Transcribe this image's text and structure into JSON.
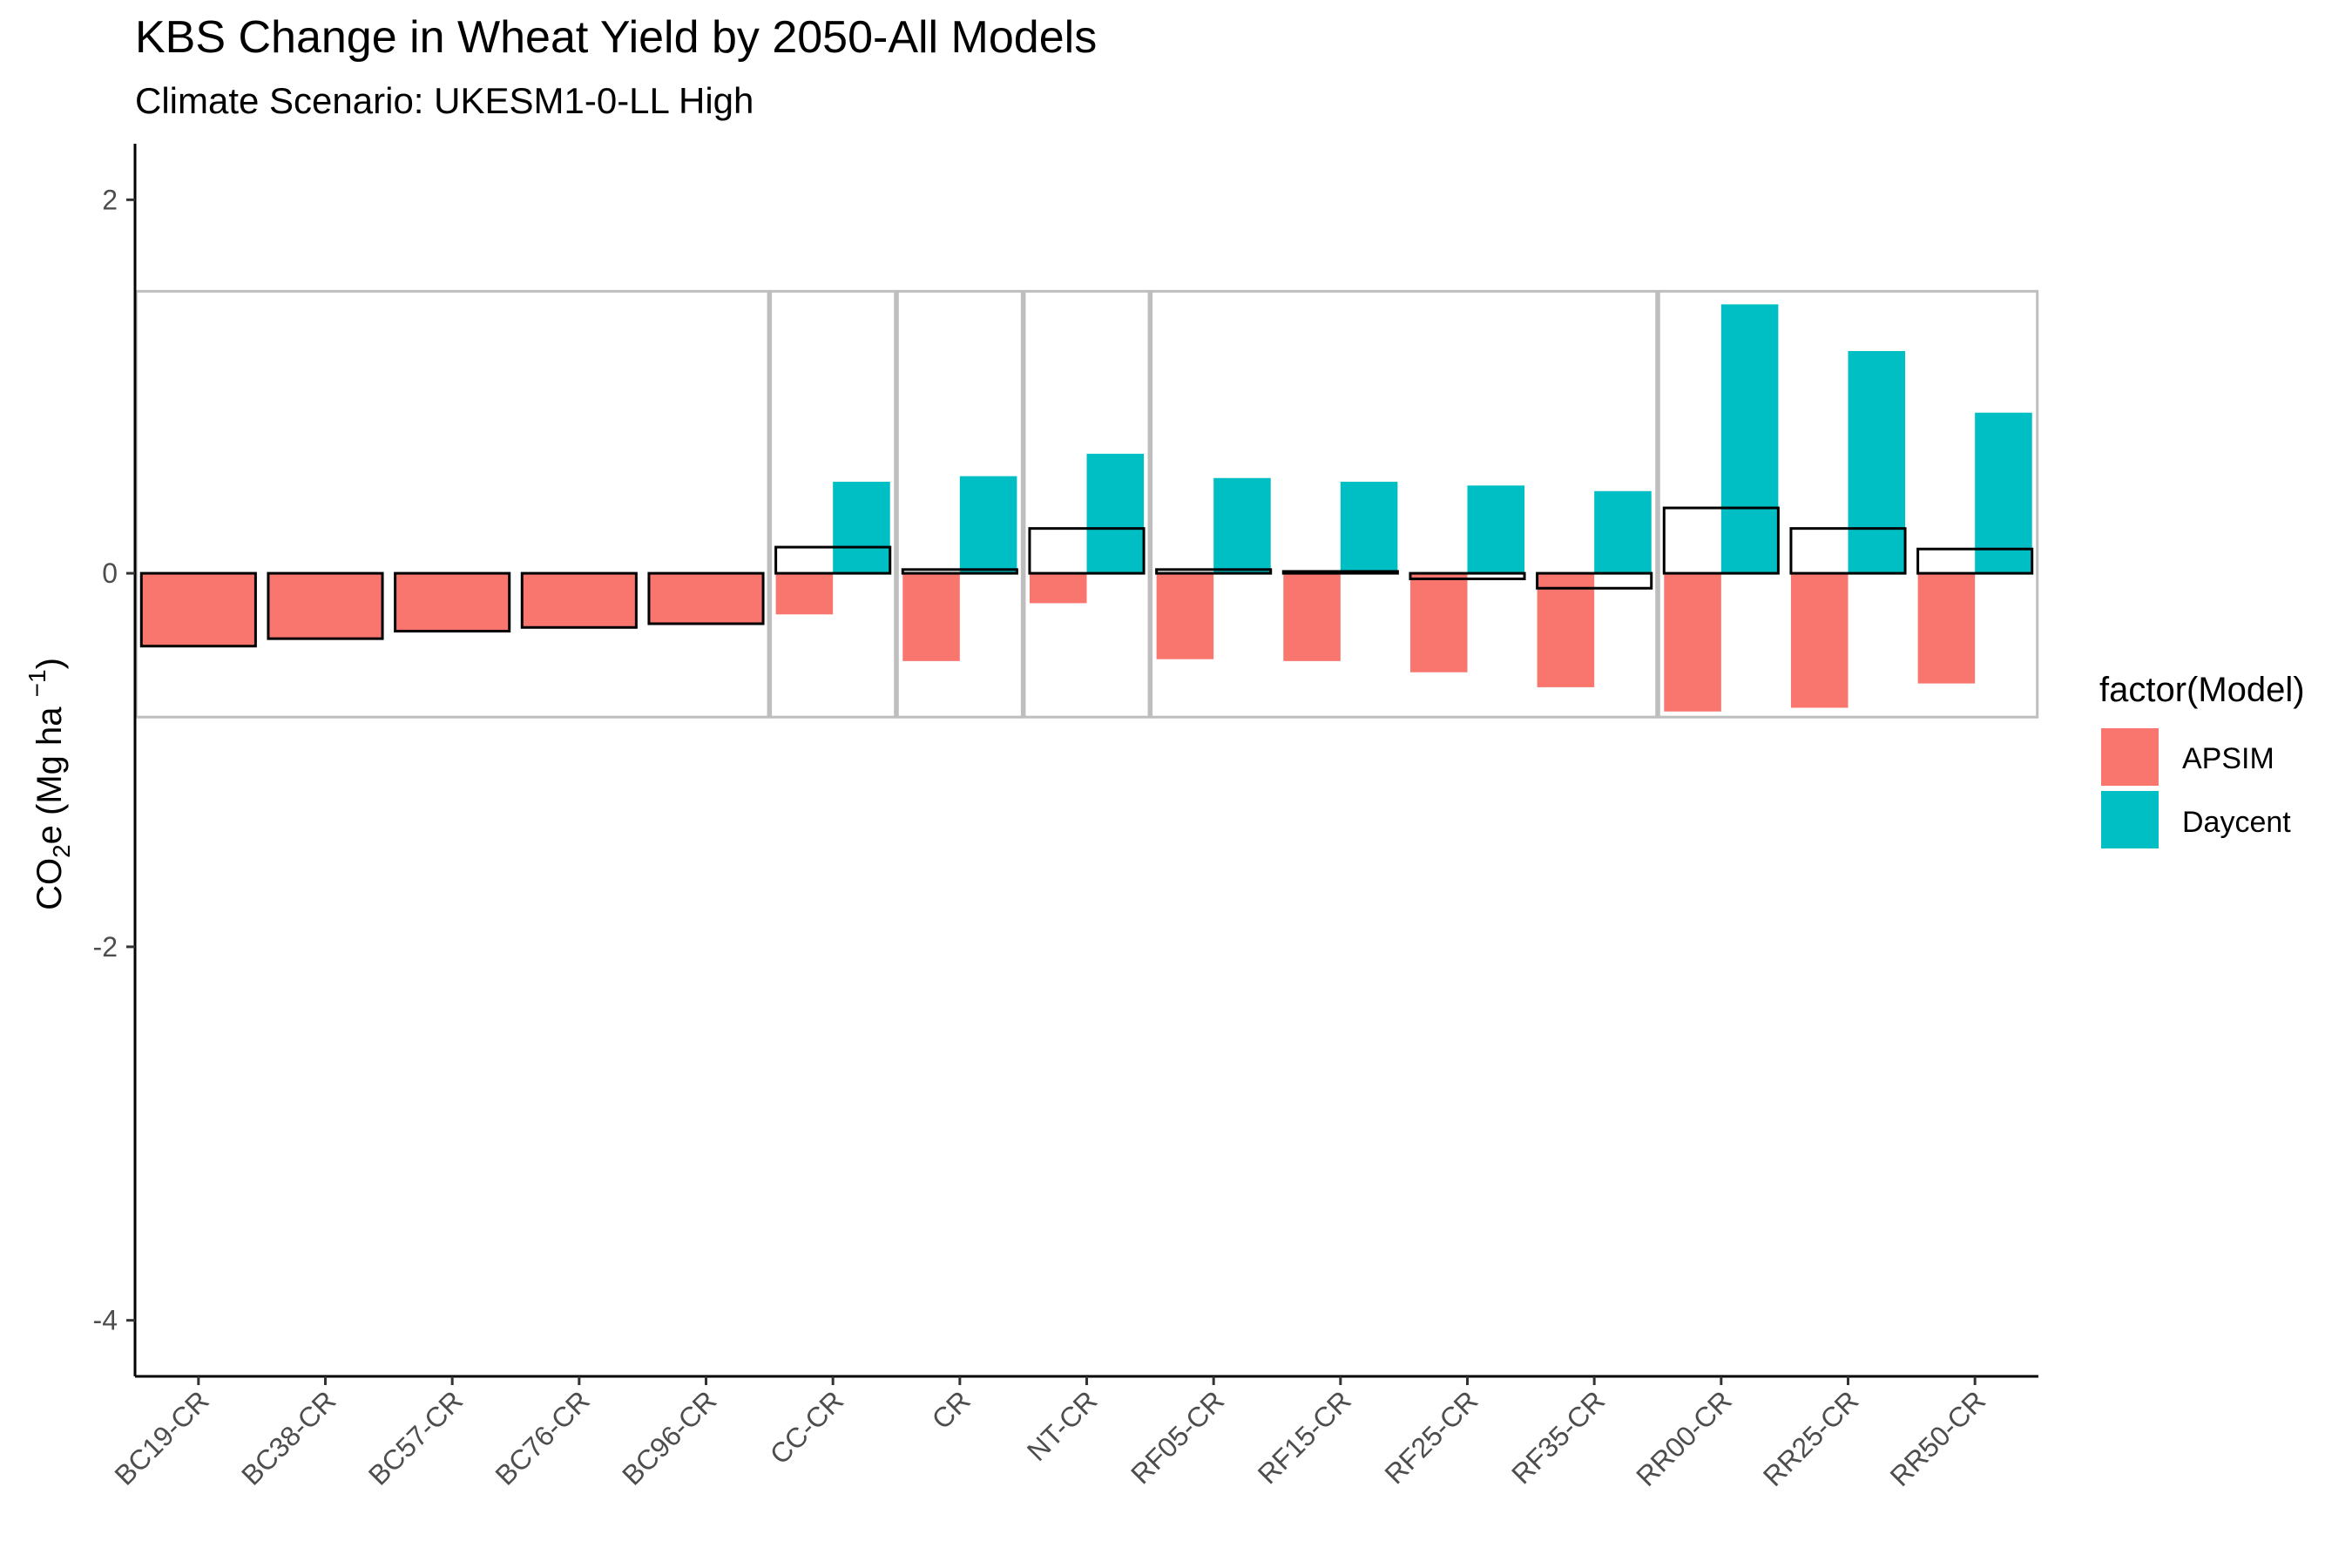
{
  "chart_data": {
    "type": "bar",
    "title": "KBS Change in Wheat Yield by 2050-All Models",
    "subtitle": "Climate Scenario: UKESM1-0-LL High",
    "ylabel": {
      "prefix": "CO",
      "sub": "2",
      "mid": "e (Mg ha ",
      "sup": "−1",
      "suffix": ")"
    },
    "xlabel": "",
    "ylim": [
      -4.3,
      2.3
    ],
    "yticks": [
      2,
      0,
      -2,
      -4
    ],
    "ytick_labels": [
      "2",
      "0",
      "-2",
      "-4"
    ],
    "categories": [
      "BC19-CR",
      "BC38-CR",
      "BC57-CR",
      "BC76-CR",
      "BC96-CR",
      "CC-CR",
      "CR",
      "NT-CR",
      "RF05-CR",
      "RF15-CR",
      "RF25-CR",
      "RF35-CR",
      "RR00-CR",
      "RR25-CR",
      "RR50-CR"
    ],
    "series": [
      {
        "name": "APSIM",
        "color": "#F8766D",
        "values": [
          -0.39,
          -0.35,
          -0.31,
          -0.29,
          -0.27,
          -0.22,
          -0.47,
          -0.16,
          -0.46,
          -0.47,
          -0.53,
          -0.61,
          -0.74,
          -0.72,
          -0.59
        ]
      },
      {
        "name": "Daycent",
        "color": "#00BFC4",
        "values": [
          null,
          null,
          null,
          null,
          null,
          0.49,
          0.52,
          0.64,
          0.51,
          0.49,
          0.47,
          0.44,
          1.44,
          1.19,
          0.86
        ]
      }
    ],
    "mean_outline": {
      "values": [
        -0.39,
        -0.35,
        -0.31,
        -0.29,
        -0.27,
        0.14,
        0.02,
        0.24,
        0.02,
        0.01,
        -0.03,
        -0.08,
        0.35,
        0.24,
        0.13
      ],
      "stroke": "#000000"
    },
    "group_boxes": {
      "stroke": "#BEBEBE",
      "yrange": [
        -0.77,
        1.51
      ],
      "groups": [
        {
          "from": 0,
          "to": 4
        },
        {
          "from": 5,
          "to": 5
        },
        {
          "from": 6,
          "to": 6
        },
        {
          "from": 7,
          "to": 7
        },
        {
          "from": 8,
          "to": 11
        },
        {
          "from": 12,
          "to": 14
        }
      ]
    },
    "legend": {
      "title": "factor(Model)",
      "position": "right",
      "items": [
        "APSIM",
        "Daycent"
      ]
    },
    "grid": false
  }
}
